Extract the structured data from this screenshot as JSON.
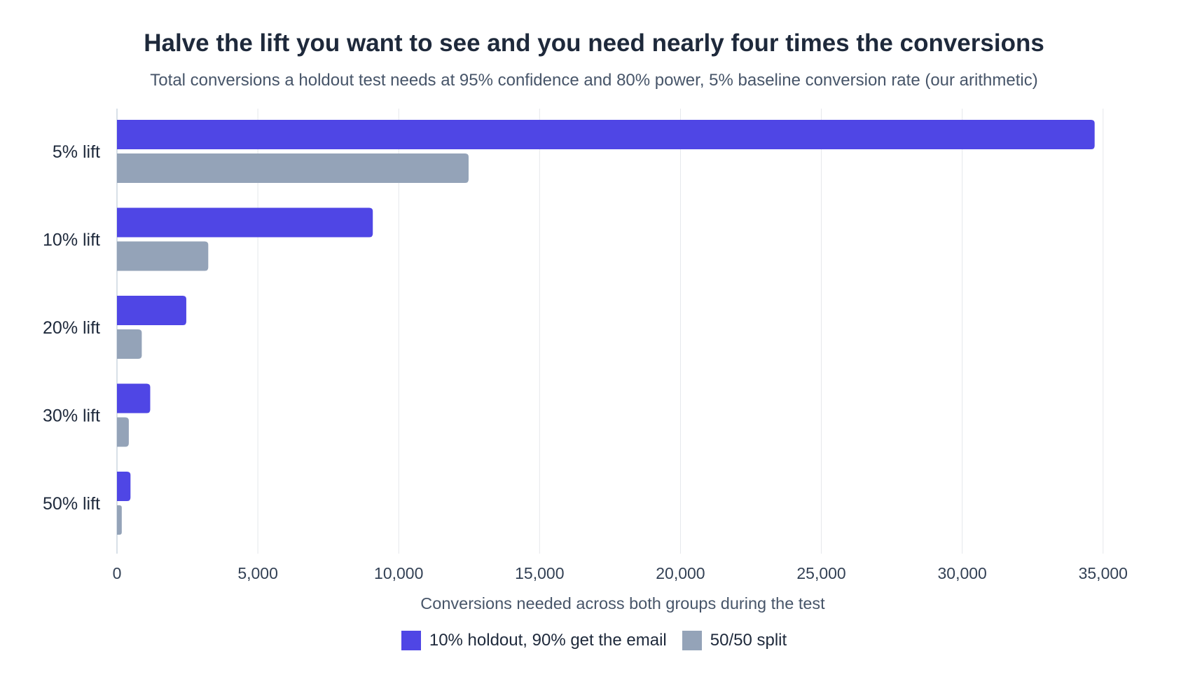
{
  "chart_data": {
    "type": "bar",
    "orientation": "horizontal",
    "title": "Halve the lift you want to see and you need nearly four times the conversions",
    "subtitle": "Total conversions a holdout test needs at 95% confidence and 80% power, 5% baseline conversion rate (our arithmetic)",
    "xlabel": "Conversions needed across both groups during the test",
    "ylabel": "",
    "xlim": [
      0,
      36000
    ],
    "xticks": [
      0,
      5000,
      10000,
      15000,
      20000,
      25000,
      30000,
      35000
    ],
    "xtick_labels": [
      "0",
      "5,000",
      "10,000",
      "15,000",
      "20,000",
      "25,000",
      "30,000",
      "35,000"
    ],
    "categories": [
      "5% lift",
      "10% lift",
      "20% lift",
      "30% lift",
      "50% lift"
    ],
    "series": [
      {
        "name": "10% holdout, 90% get the email",
        "color": "#4f46e5",
        "values": [
          34700,
          9080,
          2460,
          1180,
          480
        ]
      },
      {
        "name": "50/50 split",
        "color": "#94a3b8",
        "values": [
          12480,
          3240,
          880,
          420,
          170
        ]
      }
    ],
    "grid": true,
    "legend_position": "bottom-center"
  }
}
